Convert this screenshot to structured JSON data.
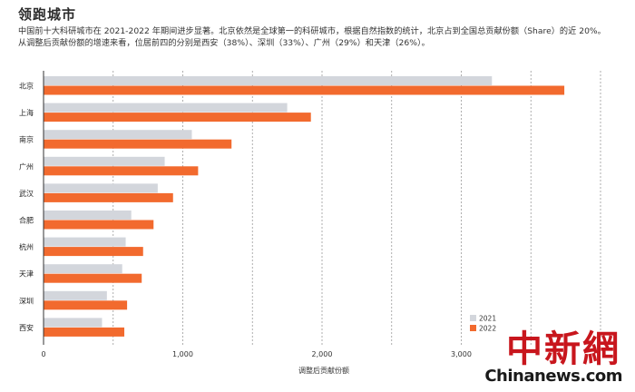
{
  "header": {
    "title": "领跑城市",
    "subtitle_line1": "中国前十大科研城市在 2021-2022 年期间进步显著。北京依然是全球第一的科研城市，根据自然指数的统计，北京占到全国总贡献份额（Share）的近 20%。",
    "subtitle_line2": "从调整后贡献份额的增速来看，位居前四的分别是西安（38%）、深圳（33%）、广州（29%）和天津（26%）。"
  },
  "chart_data": {
    "type": "bar",
    "orientation": "horizontal",
    "categories": [
      "北京",
      "上海",
      "南京",
      "广州",
      "武汉",
      "合肥",
      "杭州",
      "天津",
      "深圳",
      "西安"
    ],
    "series": [
      {
        "name": "2021",
        "color": "#d3d6dc",
        "values": [
          3220,
          1750,
          1065,
          870,
          820,
          630,
          590,
          565,
          455,
          420
        ]
      },
      {
        "name": "2022",
        "color": "#f26a2e",
        "values": [
          3740,
          1920,
          1350,
          1110,
          930,
          790,
          715,
          705,
          600,
          580
        ]
      }
    ],
    "xlabel": "调整后贡献份额",
    "xlim": [
      0,
      4000
    ],
    "xticks": [
      0,
      1000,
      2000,
      3000
    ],
    "xtick_labels": [
      "0",
      "1,000",
      "2,000",
      "3,000"
    ],
    "grid": "vertical-dashed",
    "legend_position": "bottom-right"
  },
  "watermark": {
    "cn": "中新網",
    "en": "Chinanews.com"
  }
}
